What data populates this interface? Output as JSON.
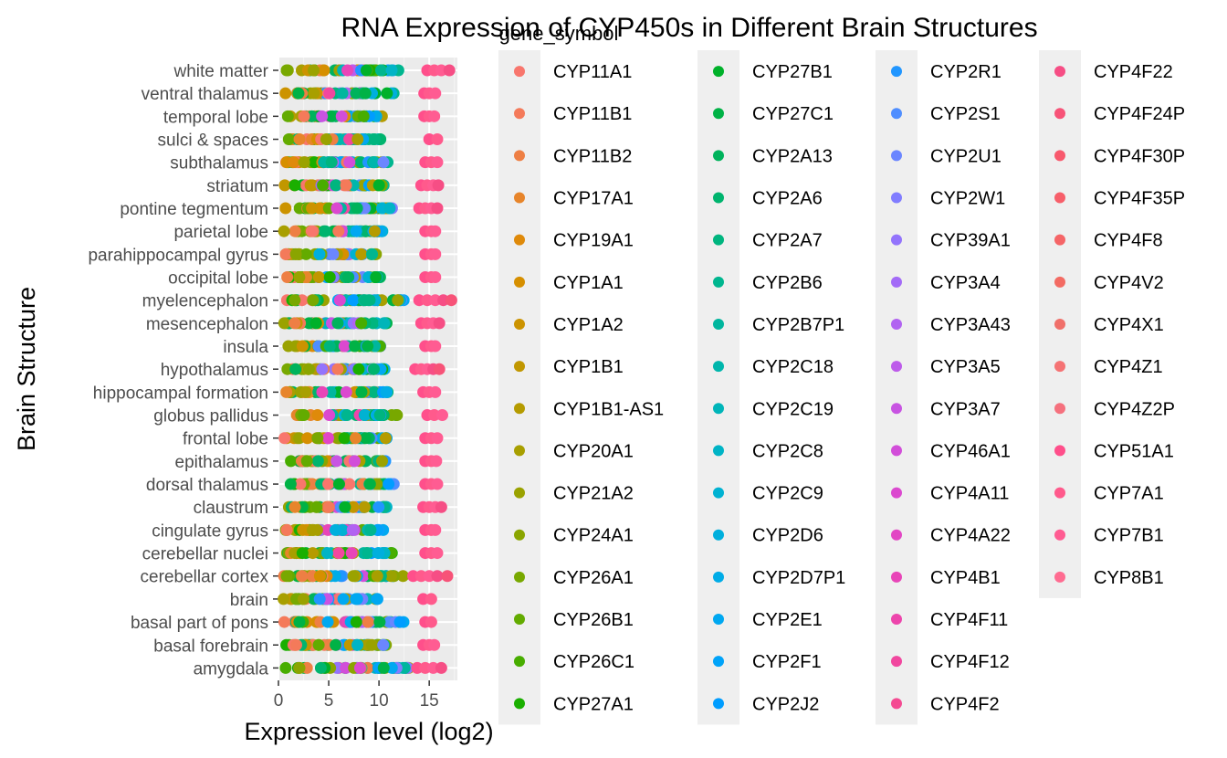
{
  "chart_data": {
    "type": "scatter",
    "title": "RNA Expression of CYP450s in Different Brain Structures",
    "xlabel": "Expression level (log2)",
    "ylabel": "Brain Structure",
    "legend_title": "gene_symbol",
    "legend_placement": "right",
    "xlim": [
      0,
      17.8
    ],
    "x_ticks": [
      "0",
      "5",
      "10",
      "15"
    ],
    "x_tick_values": [
      0,
      5,
      10,
      15
    ],
    "grid": true,
    "panel_color": "#ebebeb",
    "categories": [
      "white matter",
      "ventral thalamus",
      "temporal lobe",
      "sulci & spaces",
      "subthalamus",
      "striatum",
      "pontine tegmentum",
      "parietal lobe",
      "parahippocampal gyrus",
      "occipital lobe",
      "myelencephalon",
      "mesencephalon",
      "insula",
      "hypothalamus",
      "hippocampal formation",
      "globus pallidus",
      "frontal lobe",
      "epithalamus",
      "dorsal thalamus",
      "claustrum",
      "cingulate gyrus",
      "cerebellar nuclei",
      "cerebellar cortex",
      "brain",
      "basal part of pons",
      "basal forebrain",
      "amygdala"
    ],
    "series": [
      {
        "name": "CYP11A1",
        "color": "#F8766D"
      },
      {
        "name": "CYP11B1",
        "color": "#F47A5A"
      },
      {
        "name": "CYP11B2",
        "color": "#EE7F44"
      },
      {
        "name": "CYP17A1",
        "color": "#E7852B"
      },
      {
        "name": "CYP19A1",
        "color": "#DF8A0A"
      },
      {
        "name": "CYP1A1",
        "color": "#D68F00"
      },
      {
        "name": "CYP1A2",
        "color": "#CC9300"
      },
      {
        "name": "CYP1B1",
        "color": "#C19700"
      },
      {
        "name": "CYP1B1-AS1",
        "color": "#B59B00"
      },
      {
        "name": "CYP20A1",
        "color": "#A89F00"
      },
      {
        "name": "CYP21A2",
        "color": "#9AA200"
      },
      {
        "name": "CYP24A1",
        "color": "#8AA500"
      },
      {
        "name": "CYP26A1",
        "color": "#78A800"
      },
      {
        "name": "CYP26B1",
        "color": "#63AB00"
      },
      {
        "name": "CYP26C1",
        "color": "#48AD00"
      },
      {
        "name": "CYP27A1",
        "color": "#1AAF00"
      },
      {
        "name": "CYP27B1",
        "color": "#00B12A"
      },
      {
        "name": "CYP27C1",
        "color": "#00B246"
      },
      {
        "name": "CYP2A13",
        "color": "#00B35C"
      },
      {
        "name": "CYP2A6",
        "color": "#00B46E"
      },
      {
        "name": "CYP2A7",
        "color": "#00B57F"
      },
      {
        "name": "CYP2B6",
        "color": "#00B68F"
      },
      {
        "name": "CYP2B7P1",
        "color": "#00B69E"
      },
      {
        "name": "CYP2C18",
        "color": "#00B6AC"
      },
      {
        "name": "CYP2C19",
        "color": "#00B5B9"
      },
      {
        "name": "CYP2C8",
        "color": "#00B4C6"
      },
      {
        "name": "CYP2C9",
        "color": "#00B2D2"
      },
      {
        "name": "CYP2D6",
        "color": "#00AFDD"
      },
      {
        "name": "CYP2D7P1",
        "color": "#00ACE7"
      },
      {
        "name": "CYP2E1",
        "color": "#00A8F1"
      },
      {
        "name": "CYP2F1",
        "color": "#00A3F9"
      },
      {
        "name": "CYP2J2",
        "color": "#009DFF"
      },
      {
        "name": "CYP2R1",
        "color": "#2196FF"
      },
      {
        "name": "CYP2S1",
        "color": "#4F8EFF"
      },
      {
        "name": "CYP2U1",
        "color": "#6B86FF"
      },
      {
        "name": "CYP2W1",
        "color": "#817DFF"
      },
      {
        "name": "CYP39A1",
        "color": "#9374FC"
      },
      {
        "name": "CYP3A4",
        "color": "#A36BF7"
      },
      {
        "name": "CYP3A43",
        "color": "#B163F1"
      },
      {
        "name": "CYP3A5",
        "color": "#BD5BEA"
      },
      {
        "name": "CYP3A7",
        "color": "#C854E2"
      },
      {
        "name": "CYP46A1",
        "color": "#D24ED9"
      },
      {
        "name": "CYP4A11",
        "color": "#DB49CF"
      },
      {
        "name": "CYP4A22",
        "color": "#E246C4"
      },
      {
        "name": "CYP4B1",
        "color": "#E845B8"
      },
      {
        "name": "CYP4F11",
        "color": "#ED45AC"
      },
      {
        "name": "CYP4F12",
        "color": "#F1479F"
      },
      {
        "name": "CYP4F2",
        "color": "#F44A92"
      },
      {
        "name": "CYP4F22",
        "color": "#F64E85"
      },
      {
        "name": "CYP4F24P",
        "color": "#F75378"
      },
      {
        "name": "CYP4F30P",
        "color": "#F8596D"
      },
      {
        "name": "CYP4F35P",
        "color": "#F75F6A"
      },
      {
        "name": "CYP4F8",
        "color": "#F56567"
      },
      {
        "name": "CYP4V2",
        "color": "#F36B63"
      },
      {
        "name": "CYP4X1",
        "color": "#F0706A"
      },
      {
        "name": "CYP4Z1",
        "color": "#F57374"
      },
      {
        "name": "CYP4Z2P",
        "color": "#F5717E"
      },
      {
        "name": "CYP51A1",
        "color": "#FF4F8B"
      },
      {
        "name": "CYP7A1",
        "color": "#FF5A8C"
      },
      {
        "name": "CYP7B1",
        "color": "#FF5C92"
      },
      {
        "name": "CYP8B1",
        "color": "#FF6C91"
      }
    ],
    "points": [
      {
        "y": "white matter",
        "x_min": 0.5,
        "x_max": 12.2,
        "x_hi": [
          14.8,
          15.5,
          16.2,
          17.0
        ]
      },
      {
        "y": "ventral thalamus",
        "x_min": 0.5,
        "x_max": 11.5,
        "x_hi": [
          14.5,
          15.0,
          15.6
        ]
      },
      {
        "y": "temporal lobe",
        "x_min": 0.5,
        "x_max": 10.5,
        "x_hi": [
          14.5,
          15.0,
          15.5
        ]
      },
      {
        "y": "sulci & spaces",
        "x_min": 0.5,
        "x_max": 10.2,
        "x_hi": [
          15.0,
          15.8
        ]
      },
      {
        "y": "subthalamus",
        "x_min": 0.5,
        "x_max": 11.2,
        "x_hi": [
          14.6,
          15.2,
          15.8
        ]
      },
      {
        "y": "striatum",
        "x_min": 0.5,
        "x_max": 10.8,
        "x_hi": [
          14.2,
          14.8,
          15.4,
          15.9
        ]
      },
      {
        "y": "pontine tegmentum",
        "x_min": 0.5,
        "x_max": 11.4,
        "x_hi": [
          14.0,
          14.6,
          15.2,
          15.8
        ]
      },
      {
        "y": "parietal lobe",
        "x_min": 0.5,
        "x_max": 10.5,
        "x_hi": [
          14.6,
          15.2,
          15.6
        ]
      },
      {
        "y": "parahippocampal gyrus",
        "x_min": 0.5,
        "x_max": 10.6,
        "x_hi": [
          14.6,
          15.2,
          15.6
        ]
      },
      {
        "y": "occipital lobe",
        "x_min": 0.5,
        "x_max": 10.3,
        "x_hi": [
          14.6,
          15.2,
          15.6
        ]
      },
      {
        "y": "myelencephalon",
        "x_min": 0.5,
        "x_max": 12.5,
        "x_hi": [
          14.0,
          14.8,
          15.6,
          16.4,
          17.2
        ]
      },
      {
        "y": "mesencephalon",
        "x_min": 0.5,
        "x_max": 11.4,
        "x_hi": [
          14.2,
          14.8,
          15.4,
          16.0
        ]
      },
      {
        "y": "insula",
        "x_min": 0.5,
        "x_max": 10.4,
        "x_hi": [
          14.6,
          15.2,
          15.6
        ]
      },
      {
        "y": "hypothalamus",
        "x_min": 0.5,
        "x_max": 11.0,
        "x_hi": [
          13.6,
          14.2,
          14.8,
          15.4,
          16.0
        ]
      },
      {
        "y": "hippocampal formation",
        "x_min": 0.5,
        "x_max": 11.0,
        "x_hi": [
          14.4,
          15.0,
          15.6
        ]
      },
      {
        "y": "globus pallidus",
        "x_min": 0.5,
        "x_max": 11.8,
        "x_hi": [
          14.8,
          15.5,
          16.3
        ]
      },
      {
        "y": "frontal lobe",
        "x_min": 0.5,
        "x_max": 10.8,
        "x_hi": [
          14.6,
          15.2,
          15.8
        ]
      },
      {
        "y": "epithalamus",
        "x_min": 0.5,
        "x_max": 10.8,
        "x_hi": [
          14.6,
          15.2,
          15.7
        ]
      },
      {
        "y": "dorsal thalamus",
        "x_min": 0.5,
        "x_max": 11.8,
        "x_hi": [
          14.6,
          15.2,
          15.8
        ]
      },
      {
        "y": "claustrum",
        "x_min": 0.5,
        "x_max": 11.0,
        "x_hi": [
          14.4,
          15.0,
          15.6,
          16.2
        ]
      },
      {
        "y": "cingulate gyrus",
        "x_min": 0.5,
        "x_max": 10.6,
        "x_hi": [
          14.6,
          15.2,
          15.6
        ]
      },
      {
        "y": "cerebellar nuclei",
        "x_min": 0.5,
        "x_max": 11.4,
        "x_hi": [
          14.6,
          15.2,
          15.8
        ]
      },
      {
        "y": "cerebellar cortex",
        "x_min": 0.5,
        "x_max": 12.5,
        "x_hi": [
          13.4,
          14.2,
          15.0,
          15.8,
          16.8
        ]
      },
      {
        "y": "brain",
        "x_min": 0.5,
        "x_max": 10.0,
        "x_hi": [
          14.4,
          15.2
        ]
      },
      {
        "y": "basal part of pons",
        "x_min": 0.5,
        "x_max": 12.6,
        "x_hi": [
          14.6,
          15.2
        ]
      },
      {
        "y": "basal forebrain",
        "x_min": 0.5,
        "x_max": 10.8,
        "x_hi": [
          14.4,
          15.0,
          15.5
        ]
      },
      {
        "y": "amygdala",
        "x_min": 0.5,
        "x_max": 13.2,
        "x_hi": [
          13.8,
          14.6,
          15.4,
          16.2
        ]
      }
    ]
  }
}
